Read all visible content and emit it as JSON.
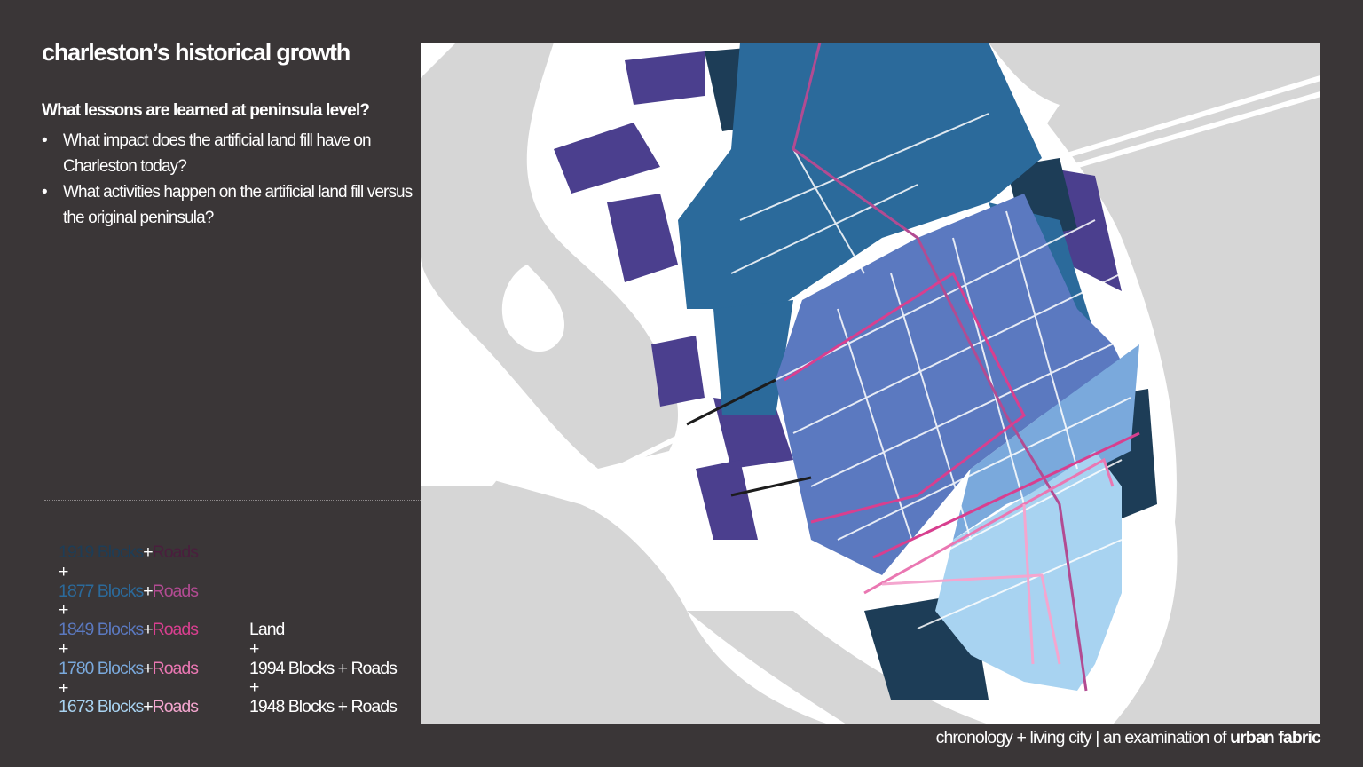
{
  "title": "charleston’s historical growth",
  "question": "What lessons are learned at peninsula level?",
  "bullets": [
    "What impact does the artificial land fill have on Charleston today?",
    "What activities happen on the artificial land fill versus the original peninsula?"
  ],
  "bullet_glyph": "•",
  "legend": {
    "plus": "+",
    "left": [
      {
        "blocks": "1919 Blocks",
        "roads": "Roads",
        "blocks_color": "#1d3d57",
        "roads_color": "#4a1e3d"
      },
      {
        "blocks": "1877 Blocks",
        "roads": "Roads",
        "blocks_color": "#2b6a9b",
        "roads_color": "#b24b92"
      },
      {
        "blocks": "1849 Blocks",
        "roads": "Roads",
        "blocks_color": "#5b79c0",
        "roads_color": "#d83f8f"
      },
      {
        "blocks": "1780 Blocks",
        "roads": "Roads",
        "blocks_color": "#7aa9dc",
        "roads_color": "#ea77b2"
      },
      {
        "blocks": "1673  Blocks",
        "roads": "Roads",
        "blocks_color": "#a8d3f1",
        "roads_color": "#f4a6cf"
      }
    ],
    "right": [
      {
        "text": "Land",
        "color": "#ffffff"
      },
      {
        "text": "1994 Blocks + Roads",
        "color": "#ffffff"
      },
      {
        "text": "1948 Blocks + Roads",
        "color": "#ffffff"
      }
    ]
  },
  "footer": {
    "prefix": "chronology + living city | an examination of ",
    "bold": "urban fabric"
  },
  "colors": {
    "background": "#3a3637",
    "water": "#d6d6d6",
    "land": "#ffffff",
    "blocks_1994_1948": "#4b3f8e",
    "blocks_1919": "#1d3d57",
    "blocks_1877": "#2b6a9b",
    "blocks_1849": "#5b79c0",
    "blocks_1780": "#7aa9dc",
    "blocks_1673": "#a8d3f1"
  }
}
